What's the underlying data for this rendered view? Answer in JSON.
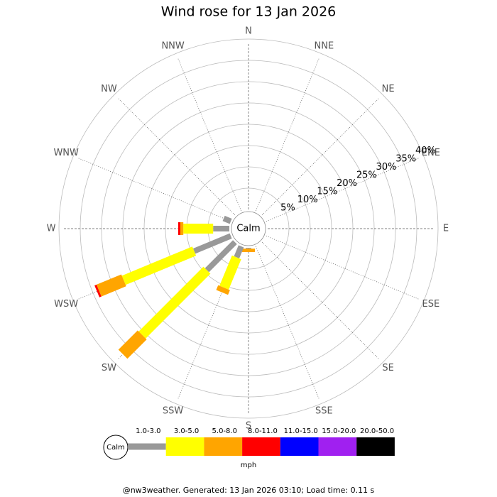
{
  "chart_data": {
    "type": "windrose",
    "title": "Wind rose for 13 Jan 2026",
    "directions": [
      "N",
      "NNE",
      "NE",
      "ENE",
      "E",
      "ESE",
      "SE",
      "SSE",
      "S",
      "SSW",
      "SW",
      "WSW",
      "W",
      "WNW",
      "NW",
      "NNW"
    ],
    "calm_label": "Calm",
    "ylim": [
      0,
      40
    ],
    "yticks": [
      {
        "value": 5,
        "label": "5%"
      },
      {
        "value": 10,
        "label": "10%"
      },
      {
        "value": 15,
        "label": "15%"
      },
      {
        "value": 20,
        "label": "20%"
      },
      {
        "value": 25,
        "label": "25%"
      },
      {
        "value": 30,
        "label": "30%"
      },
      {
        "value": 35,
        "label": "35%"
      },
      {
        "value": 40,
        "label": "40%"
      }
    ],
    "series": [
      {
        "name": "1.0-3.0",
        "color": "#999999",
        "values": [
          0,
          0,
          0,
          0,
          0,
          0,
          0,
          0,
          0.2,
          2.8,
          9.3,
          9.3,
          3.8,
          1.8,
          0,
          0
        ]
      },
      {
        "name": "3.0-5.0",
        "color": "#ffff00",
        "values": [
          0,
          0,
          0,
          0,
          0,
          0,
          0,
          0,
          0,
          7.7,
          21.5,
          17.9,
          7,
          0,
          0,
          0
        ]
      },
      {
        "name": "5.0-8.0",
        "color": "#ffa500",
        "values": [
          0,
          0,
          0,
          0,
          0,
          0,
          0,
          0,
          0.8,
          1.2,
          6.4,
          6.3,
          0.7,
          0,
          0,
          0
        ]
      },
      {
        "name": "8.0-11.0",
        "color": "#ff0000",
        "values": [
          0,
          0,
          0,
          0,
          0,
          0,
          0,
          0,
          0,
          0,
          0,
          0.5,
          0.5,
          0,
          0,
          0
        ]
      },
      {
        "name": "11.0-15.0",
        "color": "#0000ff",
        "values": [
          0,
          0,
          0,
          0,
          0,
          0,
          0,
          0,
          0,
          0,
          0,
          0,
          0,
          0,
          0,
          0
        ]
      },
      {
        "name": "15.0-20.0",
        "color": "#a020f0",
        "values": [
          0,
          0,
          0,
          0,
          0,
          0,
          0,
          0,
          0,
          0,
          0,
          0,
          0,
          0,
          0,
          0
        ]
      },
      {
        "name": "20.0-50.0",
        "color": "#000000",
        "values": [
          0,
          0,
          0,
          0,
          0,
          0,
          0,
          0,
          0,
          0,
          0,
          0,
          0,
          0,
          0,
          0
        ]
      }
    ],
    "legend_unit": "mph",
    "footer": "@nw3weather. Generated: 13 Jan 2026 03:10; Load time: 0.11 s"
  }
}
